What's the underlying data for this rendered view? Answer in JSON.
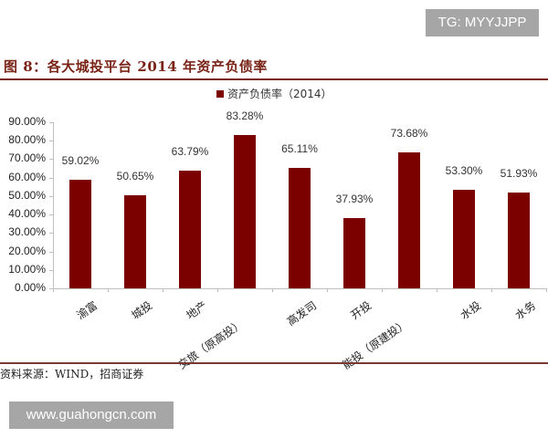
{
  "watermark_top": "TG: MYYJJPP",
  "figure_title": "图 8：各大城投平台 2014 年资产负债率",
  "legend": {
    "label": "资产负债率（2014）",
    "color": "#7b0000"
  },
  "source": "资料来源：WIND，招商证券",
  "watermark_bottom": "www.guahongcn.com",
  "chart_data": {
    "type": "bar",
    "title": "图 8：各大城投平台 2014 年资产负债率",
    "xlabel": "",
    "ylabel": "",
    "ylim": [
      0,
      90
    ],
    "yticks": [
      "0.00%",
      "10.00%",
      "20.00%",
      "30.00%",
      "40.00%",
      "50.00%",
      "60.00%",
      "70.00%",
      "80.00%",
      "90.00%"
    ],
    "categories": [
      "渝富",
      "城投",
      "地产",
      "交旅（原高投）",
      "高发司",
      "开投",
      "能投（原建投）",
      "水投",
      "水务"
    ],
    "series": [
      {
        "name": "资产负债率（2014）",
        "values": [
          59.02,
          50.65,
          63.79,
          83.28,
          65.11,
          37.93,
          73.68,
          53.3,
          51.93
        ]
      }
    ],
    "value_labels": [
      "59.02%",
      "50.65%",
      "63.79%",
      "83.28%",
      "65.11%",
      "37.93%",
      "73.68%",
      "53.30%",
      "51.93%"
    ],
    "grid": false,
    "legend_position": "top"
  }
}
